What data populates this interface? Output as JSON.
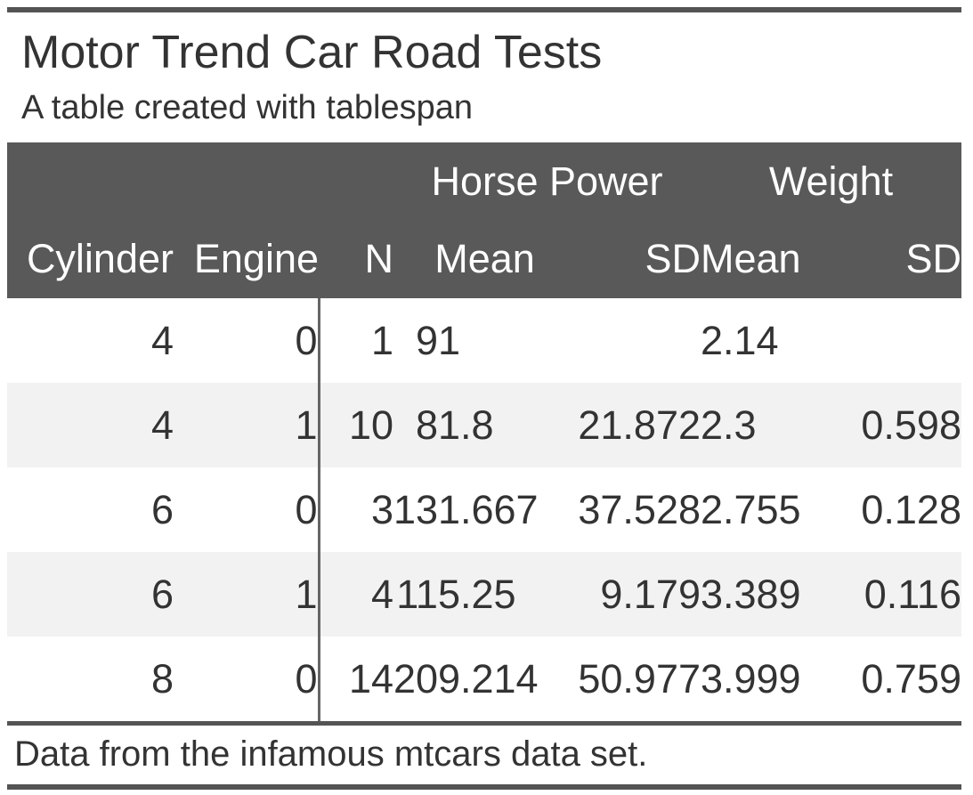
{
  "title": "Motor Trend Car Road Tests",
  "subtitle": "A table created with tablespan",
  "footnote": "Data from the infamous mtcars data set.",
  "colors": {
    "header_bg": "#595959",
    "header_text": "#ffffff",
    "body_text": "#333333",
    "stripe_bg": "#f2f2f2",
    "rule": "#545454",
    "divider": "#666666"
  },
  "table": {
    "spanners": [
      "Horse Power",
      "Weight"
    ],
    "columns": [
      "Cylinder",
      "Engine",
      "N",
      "Mean",
      "SD",
      "Mean",
      "SD"
    ],
    "rows": [
      {
        "cylinder": "4",
        "engine": "0",
        "n": "1",
        "hp_mean": "91",
        "hp_sd": "",
        "wt_mean": "2.14",
        "wt_sd": ""
      },
      {
        "cylinder": "4",
        "engine": "1",
        "n": "10",
        "hp_mean": "81.8",
        "hp_sd": "21.872",
        "wt_mean": "2.3",
        "wt_sd": "0.598"
      },
      {
        "cylinder": "6",
        "engine": "0",
        "n": "3",
        "hp_mean": "131.667",
        "hp_sd": "37.528",
        "wt_mean": "2.755",
        "wt_sd": "0.128"
      },
      {
        "cylinder": "6",
        "engine": "1",
        "n": "4",
        "hp_mean": "115.25",
        "hp_sd": "9.179",
        "wt_mean": "3.389",
        "wt_sd": "0.116"
      },
      {
        "cylinder": "8",
        "engine": "0",
        "n": "14",
        "hp_mean": "209.214",
        "hp_sd": "50.977",
        "wt_mean": "3.999",
        "wt_sd": "0.759"
      }
    ]
  },
  "chart_data": {
    "type": "table",
    "title": "Motor Trend Car Road Tests",
    "subtitle": "A table created with tablespan",
    "footnote": "Data from the infamous mtcars data set.",
    "column_spanners": [
      {
        "label": "Horse Power",
        "columns": [
          "Mean",
          "SD"
        ]
      },
      {
        "label": "Weight",
        "columns": [
          "Mean",
          "SD"
        ]
      }
    ],
    "columns": [
      "Cylinder",
      "Engine",
      "N",
      "Horse Power Mean",
      "Horse Power SD",
      "Weight Mean",
      "Weight SD"
    ],
    "rows": [
      [
        4,
        0,
        1,
        91,
        null,
        2.14,
        null
      ],
      [
        4,
        1,
        10,
        81.8,
        21.872,
        2.3,
        0.598
      ],
      [
        6,
        0,
        3,
        131.667,
        37.528,
        2.755,
        0.128
      ],
      [
        6,
        1,
        4,
        115.25,
        9.179,
        3.389,
        0.116
      ],
      [
        8,
        0,
        14,
        209.214,
        50.977,
        3.999,
        0.759
      ]
    ]
  }
}
